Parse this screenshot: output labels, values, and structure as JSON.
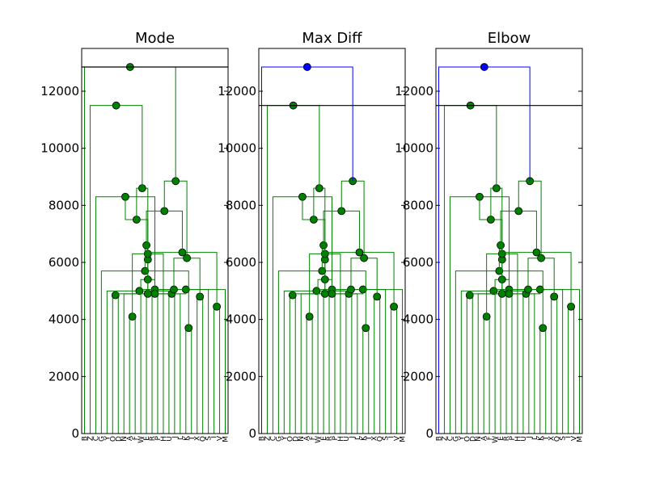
{
  "chart_data": [
    {
      "type": "dendrogram",
      "title": "Mode",
      "ylim": [
        0,
        13500
      ],
      "yticks": [
        0,
        2000,
        4000,
        6000,
        8000,
        10000,
        12000
      ],
      "cut_height": 12850,
      "leaf_labels": [
        "B",
        "Z",
        "C",
        "G",
        "Y",
        "O",
        "D",
        "N",
        "A",
        "F",
        "W",
        "E",
        "R",
        "P",
        "H",
        "U",
        "J",
        "L",
        "K",
        "T",
        "X",
        "Q",
        "S",
        "I",
        "V",
        "M"
      ],
      "merges": [
        {
          "pair": [
            13,
            14
          ],
          "height": 5050
        },
        {
          "pair": [
            12,
            26
          ],
          "height": 5050
        },
        {
          "pair": [
            9,
            10
          ],
          "height": 4100
        },
        {
          "pair": [
            16,
            17
          ],
          "height": 4900
        },
        {
          "pair": [
            6,
            7
          ],
          "height": 4850
        },
        {
          "pair": [
            19,
            20
          ],
          "height": 3700
        },
        {
          "pair": [
            5,
            30
          ],
          "height": 5000
        },
        {
          "pair": [
            24,
            25
          ],
          "height": 4450
        },
        {
          "pair": [
            23,
            33
          ],
          "height": 5050
        },
        {
          "pair": [
            11,
            27
          ],
          "height": 5400
        },
        {
          "pair": [
            21,
            22
          ],
          "height": 4800
        },
        {
          "pair": [
            8,
            28
          ],
          "height": 4900
        },
        {
          "pair": [
            4,
            32
          ],
          "height": 5700
        },
        {
          "pair": [
            18,
            31
          ],
          "height": 4900
        },
        {
          "pair": [
            36,
            40
          ],
          "height": 6100
        },
        {
          "pair": [
            15,
            29
          ],
          "height": 6300
        },
        {
          "pair": [
            35,
            37
          ],
          "height": 6150
        },
        {
          "pair": [
            3,
            38
          ],
          "height": 8300
        },
        {
          "pair": [
            34,
            42
          ],
          "height": 6350
        },
        {
          "pair": [
            39,
            41
          ],
          "height": 6600
        },
        {
          "pair": [
            44,
            40
          ],
          "height": 7500
        },
        {
          "pair": [
            45,
            46
          ],
          "height": 7800
        },
        {
          "pair": [
            42,
            47
          ],
          "height": 8600
        },
        {
          "pair": [
            43,
            48
          ],
          "height": 8850
        },
        {
          "pair": [
            2,
            49
          ],
          "height": 11500
        },
        {
          "pair": [
            1,
            50
          ],
          "height": 12850
        }
      ],
      "cluster_colors": [
        "#008000"
      ]
    },
    {
      "type": "dendrogram",
      "title": "Max Diff",
      "ylim": [
        0,
        13500
      ],
      "yticks": [
        0,
        2000,
        4000,
        6000,
        8000,
        10000,
        12000
      ],
      "cut_height": 11500,
      "leaf_labels": [
        "B",
        "Z",
        "C",
        "G",
        "Y",
        "O",
        "D",
        "N",
        "A",
        "F",
        "W",
        "E",
        "R",
        "P",
        "H",
        "U",
        "J",
        "L",
        "K",
        "T",
        "X",
        "Q",
        "S",
        "I",
        "V",
        "M"
      ],
      "cluster_colors": [
        "#0000ff",
        "#008000"
      ]
    },
    {
      "type": "dendrogram",
      "title": "Elbow",
      "ylim": [
        0,
        13500
      ],
      "yticks": [
        0,
        2000,
        4000,
        6000,
        8000,
        10000,
        12000
      ],
      "cut_height": 11500,
      "leaf_labels": [
        "B",
        "Z",
        "C",
        "G",
        "Y",
        "O",
        "D",
        "N",
        "A",
        "F",
        "W",
        "E",
        "R",
        "P",
        "H",
        "U",
        "J",
        "L",
        "K",
        "T",
        "X",
        "Q",
        "S",
        "I",
        "V",
        "M"
      ],
      "cluster_colors": [
        "#0000ff",
        "#008000"
      ]
    }
  ]
}
